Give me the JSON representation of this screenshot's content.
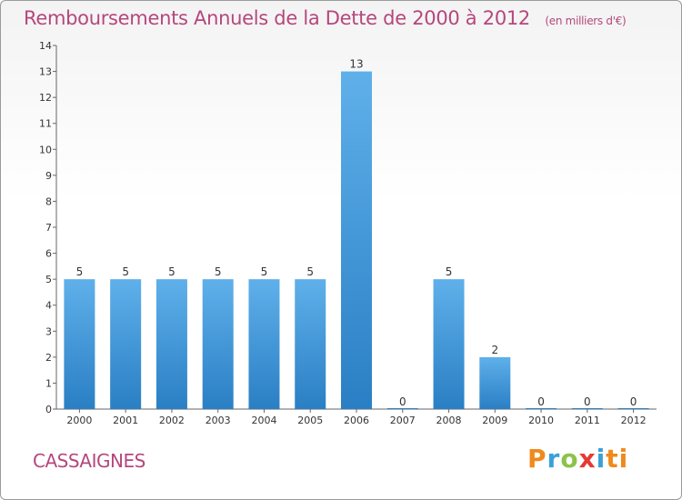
{
  "header": {
    "title": "Remboursements Annuels de la Dette de 2000 à 2012",
    "unit": "(en milliers d'€)"
  },
  "footer": {
    "city": "CASSAIGNES",
    "logo": [
      "P",
      "r",
      "o",
      "x",
      "i",
      "ti"
    ]
  },
  "colors": {
    "title": "#b5477d",
    "bar_light": "#5aaae6",
    "bar_dark": "#2a7fc4",
    "axis": "#555555"
  },
  "chart_data": {
    "type": "bar",
    "title": "Remboursements Annuels de la Dette de 2000 à 2012",
    "xlabel": "",
    "ylabel": "",
    "categories": [
      "2000",
      "2001",
      "2002",
      "2003",
      "2004",
      "2005",
      "2006",
      "2007",
      "2008",
      "2009",
      "2010",
      "2011",
      "2012"
    ],
    "values": [
      5,
      5,
      5,
      5,
      5,
      5,
      13,
      0,
      5,
      2,
      0,
      0,
      0
    ],
    "ylim": [
      0,
      14
    ],
    "yticks": [
      0,
      1,
      2,
      3,
      4,
      5,
      6,
      7,
      8,
      9,
      10,
      11,
      12,
      13,
      14
    ],
    "grid": false,
    "legend": "none"
  }
}
